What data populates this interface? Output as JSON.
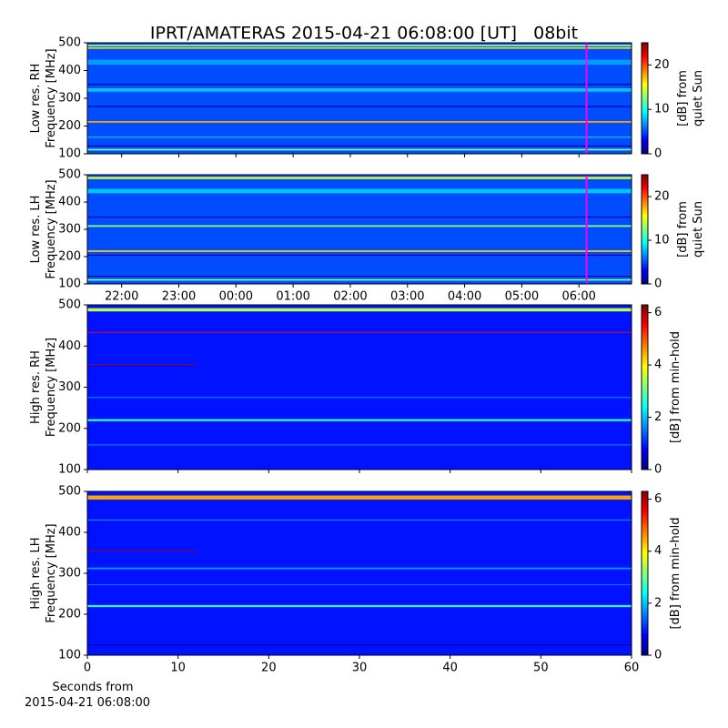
{
  "chart_data": [
    {
      "type": "spectrogram",
      "title": "IPRT/AMATERAS 2015-04-21 06:08:00 [UT]   08bit",
      "ylabel": [
        "Low res. RH",
        "Frequency [MHz]"
      ],
      "xlim": [
        21.4,
        30.92
      ],
      "ylim": [
        100,
        500
      ],
      "yticks": [
        100,
        200,
        300,
        400,
        500
      ],
      "clim": [
        0,
        25
      ],
      "cticks": [
        0,
        10,
        20
      ],
      "clabel": [
        "[dB] from",
        "quiet Sun"
      ],
      "background": 5,
      "marker_x": 30.133,
      "marker_color": "#ff00ff",
      "bands": [
        {
          "frequency": 490,
          "width": 6,
          "level": 13
        },
        {
          "frequency": 481,
          "width": 5,
          "level": 16
        },
        {
          "frequency": 430,
          "width": 18,
          "level": 7
        },
        {
          "frequency": 350,
          "width": 4,
          "level": 1
        },
        {
          "frequency": 330,
          "width": 12,
          "level": 8
        },
        {
          "frequency": 270,
          "width": 4,
          "level": 1
        },
        {
          "frequency": 215,
          "width": 6,
          "level": 18
        },
        {
          "frequency": 160,
          "width": 4,
          "level": 8
        },
        {
          "frequency": 128,
          "width": 4,
          "level": 1
        },
        {
          "frequency": 115,
          "width": 6,
          "level": 12
        }
      ]
    },
    {
      "type": "spectrogram",
      "ylabel": [
        "Low res. LH",
        "Frequency [MHz]"
      ],
      "xlim": [
        21.4,
        30.92
      ],
      "xticks": [
        {
          "value": 22,
          "label": "22:00"
        },
        {
          "value": 23,
          "label": "23:00"
        },
        {
          "value": 24,
          "label": "00:00"
        },
        {
          "value": 25,
          "label": "01:00"
        },
        {
          "value": 26,
          "label": "02:00"
        },
        {
          "value": 27,
          "label": "03:00"
        },
        {
          "value": 28,
          "label": "04:00"
        },
        {
          "value": 29,
          "label": "05:00"
        },
        {
          "value": 30,
          "label": "06:00"
        }
      ],
      "ylim": [
        100,
        500
      ],
      "yticks": [
        100,
        200,
        300,
        400,
        500
      ],
      "clim": [
        0,
        25
      ],
      "cticks": [
        0,
        10,
        20
      ],
      "clabel": [
        "[dB] from",
        "quiet Sun"
      ],
      "background": 5,
      "marker_x": 30.133,
      "marker_color": "#ff00ff",
      "bands": [
        {
          "frequency": 488,
          "width": 8,
          "level": 15
        },
        {
          "frequency": 440,
          "width": 16,
          "level": 8
        },
        {
          "frequency": 345,
          "width": 4,
          "level": 1
        },
        {
          "frequency": 312,
          "width": 6,
          "level": 13
        },
        {
          "frequency": 220,
          "width": 6,
          "level": 17
        },
        {
          "frequency": 205,
          "width": 4,
          "level": 1
        },
        {
          "frequency": 128,
          "width": 4,
          "level": 1
        },
        {
          "frequency": 115,
          "width": 6,
          "level": 12
        }
      ]
    },
    {
      "type": "spectrogram",
      "ylabel": [
        "High res. RH",
        "Frequency [MHz]"
      ],
      "xlim": [
        0,
        60
      ],
      "ylim": [
        100,
        500
      ],
      "yticks": [
        100,
        200,
        300,
        400,
        500
      ],
      "clim": [
        0,
        6.3
      ],
      "cticks": [
        0,
        2,
        4,
        6
      ],
      "clabel": [
        "[dB] from min-hold"
      ],
      "background": 0.9,
      "bands": [
        {
          "frequency": 488,
          "width": 8,
          "level": 3.5
        },
        {
          "frequency": 433,
          "width": 2,
          "level": 5.5
        },
        {
          "frequency": 355,
          "width": 2,
          "level": 6,
          "x": [
            0,
            12
          ]
        },
        {
          "frequency": 275,
          "width": 2,
          "level": 1.8
        },
        {
          "frequency": 220,
          "width": 5,
          "level": 2.6
        },
        {
          "frequency": 160,
          "width": 3,
          "level": 1.5
        }
      ]
    },
    {
      "type": "spectrogram",
      "ylabel": [
        "High res. LH",
        "Frequency [MHz]"
      ],
      "xlim": [
        0,
        60
      ],
      "xticks": [
        0,
        10,
        20,
        30,
        40,
        50,
        60
      ],
      "xlabel": [
        "Seconds from",
        "2015-04-21 06:08:00"
      ],
      "ylim": [
        100,
        500
      ],
      "yticks": [
        100,
        200,
        300,
        400,
        500
      ],
      "clim": [
        0,
        6.3
      ],
      "cticks": [
        0,
        2,
        4,
        6
      ],
      "clabel": [
        "[dB] from min-hold"
      ],
      "background": 0.9,
      "bands": [
        {
          "frequency": 485,
          "width": 10,
          "level": 4.5
        },
        {
          "frequency": 430,
          "width": 2,
          "level": 1.8
        },
        {
          "frequency": 355,
          "width": 2,
          "level": 6,
          "x": [
            0,
            12
          ]
        },
        {
          "frequency": 312,
          "width": 4,
          "level": 1.8
        },
        {
          "frequency": 272,
          "width": 2,
          "level": 1.6
        },
        {
          "frequency": 220,
          "width": 5,
          "level": 2.6
        },
        {
          "frequency": 125,
          "width": 2,
          "level": 0.2
        }
      ]
    }
  ]
}
